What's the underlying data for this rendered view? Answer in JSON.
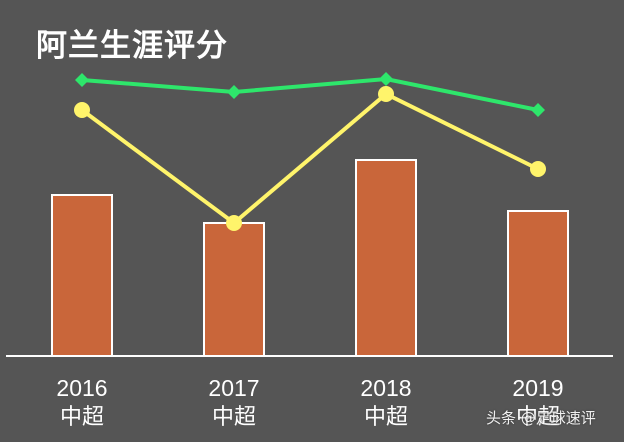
{
  "title": "阿兰生涯评分",
  "watermark": "头条 @足球速评",
  "colors": {
    "background": "#555555",
    "bar_fill": "#C9663A",
    "bar_stroke": "#FFFFFF",
    "line_green": "#2EE66B",
    "line_yellow": "#FFF46B",
    "axis": "#FFFFFF",
    "text": "#FFFFFF"
  },
  "x_labels": [
    {
      "year": "2016",
      "league": "中超"
    },
    {
      "year": "2017",
      "league": "中超"
    },
    {
      "year": "2018",
      "league": "中超"
    },
    {
      "year": "2019",
      "league": "中超"
    }
  ],
  "chart_data": {
    "type": "bar",
    "title": "阿兰生涯评分",
    "categories": [
      "2016 中超",
      "2017 中超",
      "2018 中超",
      "2019 中超"
    ],
    "xlabel": "",
    "ylabel": "",
    "grid": false,
    "legend": null,
    "axis_ticks_shown": false,
    "series": [
      {
        "name": "bars",
        "type": "bar",
        "color": "#C9663A",
        "values": [
          161,
          133,
          196,
          145
        ]
      },
      {
        "name": "green line",
        "type": "line",
        "marker": "diamond",
        "color": "#2EE66B",
        "values": [
          276,
          264,
          277,
          246
        ]
      },
      {
        "name": "yellow line",
        "type": "line",
        "marker": "circle",
        "color": "#FFF46B",
        "values": [
          246,
          133,
          262,
          187
        ]
      }
    ],
    "note": "No value axis shown; values are relative pixel heights above baseline (unitless estimates)."
  }
}
